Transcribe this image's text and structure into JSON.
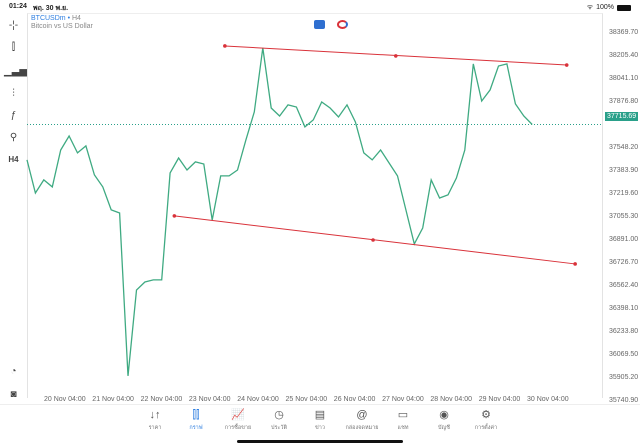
{
  "status": {
    "time": "01:24",
    "date": "พฤ. 30 พ.ย.",
    "battery": "100%"
  },
  "symbol": {
    "name": "BTCUSDm",
    "timeframe": "H4",
    "description": "Bitcoin vs US Dollar"
  },
  "toolbar": [
    {
      "icon": "crosshair-icon",
      "label": "-¦-"
    },
    {
      "icon": "candles-icon",
      "label": "⫿"
    },
    {
      "icon": "indicators-icon",
      "label": "▁▃▅"
    },
    {
      "icon": "settings-sliders-icon",
      "label": "⫶"
    },
    {
      "icon": "function-icon",
      "label": "ƒ"
    },
    {
      "icon": "objects-icon",
      "label": "⚲"
    },
    {
      "icon": "timeframe",
      "label": "H4"
    },
    {
      "icon": "signal-icon",
      "label": "◔"
    },
    {
      "icon": "app-logo-icon",
      "label": "◙"
    }
  ],
  "colors": {
    "line": "#3faa82",
    "trend": "#d9323a",
    "last_price": "#2aa08a",
    "accent": "#2f7fe0"
  },
  "price_axis": [
    "38369.70",
    "38205.40",
    "38041.10",
    "37876.80",
    "37548.20",
    "37383.90",
    "37219.60",
    "37055.30",
    "36891.00",
    "36726.70",
    "36562.40",
    "36398.10",
    "36233.80",
    "36069.50",
    "35905.20",
    "35740.90"
  ],
  "last_price": "37715.69",
  "time_axis": [
    "20 Nov 04:00",
    "21 Nov 04:00",
    "22 Nov 04:00",
    "23 Nov 04:00",
    "24 Nov 04:00",
    "25 Nov 04:00",
    "26 Nov 04:00",
    "27 Nov 04:00",
    "28 Nov 04:00",
    "29 Nov 04:00",
    "30 Nov 04:00"
  ],
  "chart_data": {
    "type": "line",
    "ylim": [
      35740.9,
      38369.7
    ],
    "close": [
      37463,
      37227,
      37320,
      37270,
      37534,
      37634,
      37513,
      37563,
      37356,
      37270,
      37106,
      37084,
      35920,
      36534,
      36591,
      36606,
      36606,
      37370,
      37477,
      37391,
      37449,
      37434,
      37034,
      37349,
      37349,
      37391,
      37606,
      37806,
      38263,
      37834,
      37777,
      37856,
      37841,
      37699,
      37749,
      37877,
      37834,
      37770,
      37856,
      37734,
      37513,
      37463,
      37534,
      37441,
      37349,
      37106,
      36863,
      36977,
      37320,
      37191,
      37213,
      37334,
      37534,
      38149,
      37884,
      37963,
      38134,
      38149,
      37863,
      37777,
      37716
    ],
    "trendlines": [
      {
        "points": [
          [
            23.5,
            38277
          ],
          [
            43.8,
            38206
          ],
          [
            64.1,
            38141
          ]
        ]
      },
      {
        "points": [
          [
            17.5,
            37063
          ],
          [
            41.1,
            36891
          ],
          [
            65.1,
            36720
          ]
        ]
      }
    ]
  },
  "nav": [
    {
      "icon": "quotes-icon",
      "glyph": "↓↑",
      "label": "ราคา"
    },
    {
      "icon": "chart-icon",
      "glyph": "⫿⫿",
      "label": "กราฟ",
      "active": true
    },
    {
      "icon": "trade-icon",
      "glyph": "📈",
      "label": "การซื้อขาย"
    },
    {
      "icon": "history-icon",
      "glyph": "◷",
      "label": "ประวัติ"
    },
    {
      "icon": "news-icon",
      "glyph": "▤",
      "label": "ข่าว"
    },
    {
      "icon": "mailbox-icon",
      "glyph": "@",
      "label": "กล่องจดหมาย"
    },
    {
      "icon": "chat-icon",
      "glyph": "▭",
      "label": "แชท"
    },
    {
      "icon": "account-icon",
      "glyph": "◉",
      "label": "บัญชี"
    },
    {
      "icon": "settings-icon",
      "glyph": "⚙",
      "label": "การตั้งค่า"
    }
  ]
}
